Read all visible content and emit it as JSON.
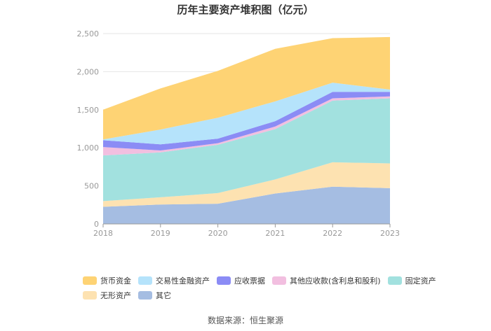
{
  "chart_data": {
    "type": "area",
    "stacked": true,
    "title": "历年主要资产堆积图（亿元）",
    "xlabel": "",
    "ylabel": "",
    "categories": [
      "2018",
      "2019",
      "2020",
      "2021",
      "2022",
      "2023"
    ],
    "ylim": [
      0,
      2500
    ],
    "yticks": [
      0,
      500,
      1000,
      1500,
      2000,
      2500
    ],
    "ytick_labels": [
      "0",
      "500",
      "1,000",
      "1,500",
      "2,000",
      "2,500"
    ],
    "grid": true,
    "legend_position": "bottom",
    "series": [
      {
        "name": "其它",
        "color": "#a5bde2",
        "values": [
          225,
          255,
          265,
          400,
          490,
          470
        ]
      },
      {
        "name": "无形资产",
        "color": "#fde2b1",
        "values": [
          75,
          95,
          140,
          185,
          320,
          325
        ]
      },
      {
        "name": "固定资产",
        "color": "#a2e1df",
        "values": [
          600,
          590,
          635,
          660,
          810,
          855
        ]
      },
      {
        "name": "其他应收款(含利息和股利)",
        "color": "#f2bfe0",
        "values": [
          110,
          25,
          20,
          35,
          30,
          25
        ]
      },
      {
        "name": "应收票据",
        "color": "#8b8cf5",
        "values": [
          90,
          80,
          60,
          70,
          85,
          60
        ]
      },
      {
        "name": "交易性金融资产",
        "color": "#b5e3fb",
        "values": [
          10,
          195,
          275,
          260,
          120,
          30
        ]
      },
      {
        "name": "货币资金",
        "color": "#fed374",
        "values": [
          390,
          540,
          615,
          690,
          585,
          690
        ]
      }
    ]
  },
  "legend": {
    "row1": [
      "货币资金",
      "交易性金融资产",
      "应收票据",
      "其他应收款(含利息和股利)",
      "固定资产"
    ],
    "row2": [
      "无形资产",
      "其它"
    ]
  },
  "footer": {
    "source": "数据来源：恒生聚源"
  }
}
